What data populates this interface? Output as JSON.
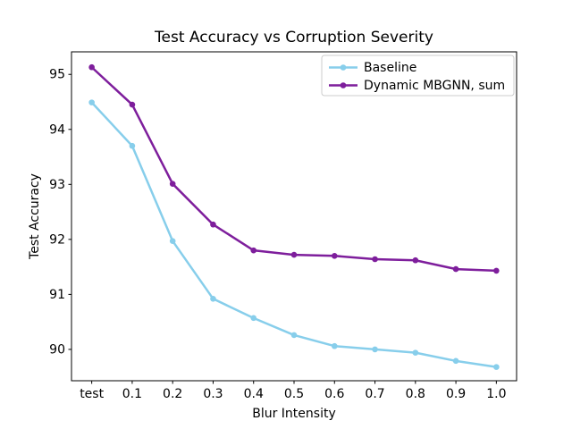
{
  "chart_data": {
    "type": "line",
    "title": "Test Accuracy vs Corruption Severity",
    "xlabel": "Blur Intensity",
    "ylabel": "Test Accuracy",
    "categories": [
      "test",
      "0.1",
      "0.2",
      "0.3",
      "0.4",
      "0.5",
      "0.6",
      "0.7",
      "0.8",
      "0.9",
      "1.0"
    ],
    "series": [
      {
        "name": "Baseline",
        "color": "#87CEEB",
        "marker": "circle",
        "values": [
          94.49,
          93.7,
          91.97,
          90.92,
          90.57,
          90.26,
          90.06,
          90.0,
          89.94,
          89.79,
          89.68
        ]
      },
      {
        "name": "Dynamic MBGNN, sum",
        "color": "#7E1E9C",
        "marker": "circle",
        "values": [
          95.13,
          94.45,
          93.01,
          92.27,
          91.8,
          91.72,
          91.7,
          91.64,
          91.62,
          91.46,
          91.43
        ]
      }
    ],
    "yticks": [
      90,
      91,
      92,
      93,
      94,
      95
    ],
    "ylim": [
      89.43,
      95.41
    ],
    "grid": false,
    "legend_position": "upper right",
    "colors": {
      "spine": "#000000",
      "legend_border": "#cccccc",
      "background": "#ffffff"
    }
  }
}
